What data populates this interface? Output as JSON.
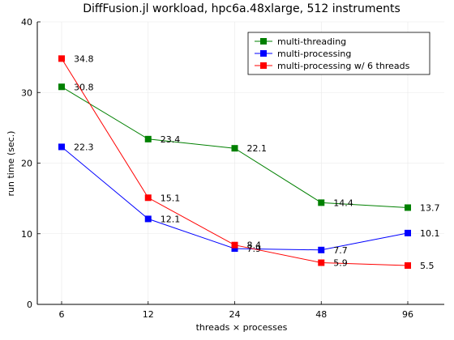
{
  "chart_data": {
    "type": "line",
    "title": "DiffFusion.jl workload, hpc6a.48xlarge, 512 instruments",
    "xlabel": "threads × processes",
    "ylabel": "run time (sec.)",
    "x_scale": "log",
    "categories": [
      "6",
      "12",
      "24",
      "48",
      "96"
    ],
    "ylim": [
      0,
      40
    ],
    "yticks": [
      0,
      10,
      20,
      30,
      40
    ],
    "grid": true,
    "legend_position": "top-right",
    "series": [
      {
        "name": "multi-threading",
        "color": "#008000",
        "values": [
          30.8,
          23.4,
          22.1,
          14.4,
          13.7
        ],
        "labels": [
          "30.8",
          "23.4",
          "22.1",
          "14.4",
          "13.7"
        ]
      },
      {
        "name": "multi-processing",
        "color": "#0000ff",
        "values": [
          22.3,
          12.1,
          7.9,
          7.7,
          10.1
        ],
        "labels": [
          "22.3",
          "12.1",
          "7.9",
          "7.7",
          "10.1"
        ]
      },
      {
        "name": "multi-processing w/ 6 threads",
        "color": "#ff0000",
        "values": [
          34.8,
          15.1,
          8.4,
          5.9,
          5.5
        ],
        "labels": [
          "34.8",
          "15.1",
          "8.4",
          "5.9",
          "5.5"
        ]
      }
    ]
  }
}
